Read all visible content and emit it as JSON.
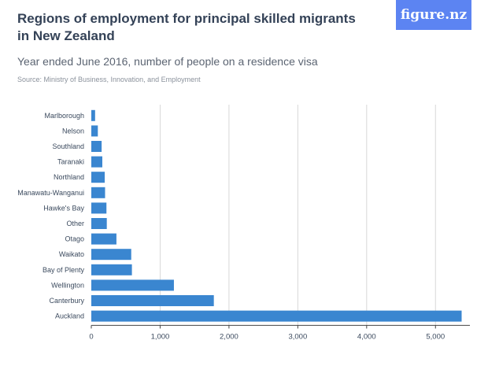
{
  "header": {
    "title": "Regions of employment for principal skilled migrants in New Zealand",
    "subtitle": "Year ended June 2016, number of people on a residence visa",
    "source": "Source: Ministry of Business, Innovation, and Employment",
    "logo": "figure.nz"
  },
  "colors": {
    "bar": "#3a86d0",
    "grid": "#d8d8d8",
    "axis": "#444444",
    "logo_bg": "#5c84f2"
  },
  "chart_data": {
    "type": "bar",
    "orientation": "horizontal",
    "title": "Regions of employment for principal skilled migrants in New Zealand",
    "subtitle": "Year ended June 2016, number of people on a residence visa",
    "categories": [
      "Marlborough",
      "Nelson",
      "Southland",
      "Taranaki",
      "Northland",
      "Manawatu-Wanganui",
      "Hawke's Bay",
      "Other",
      "Otago",
      "Waikato",
      "Bay of Plenty",
      "Wellington",
      "Canterbury",
      "Auckland"
    ],
    "values": [
      55,
      95,
      150,
      160,
      195,
      200,
      220,
      225,
      365,
      580,
      590,
      1200,
      1780,
      5380
    ],
    "xlim": [
      0,
      5500
    ],
    "xticks": [
      0,
      1000,
      2000,
      3000,
      4000,
      5000
    ],
    "xtick_labels": [
      "0",
      "1,000",
      "2,000",
      "3,000",
      "4,000",
      "5,000"
    ],
    "xlabel": "",
    "ylabel": "",
    "grid": true,
    "legend": "none"
  }
}
